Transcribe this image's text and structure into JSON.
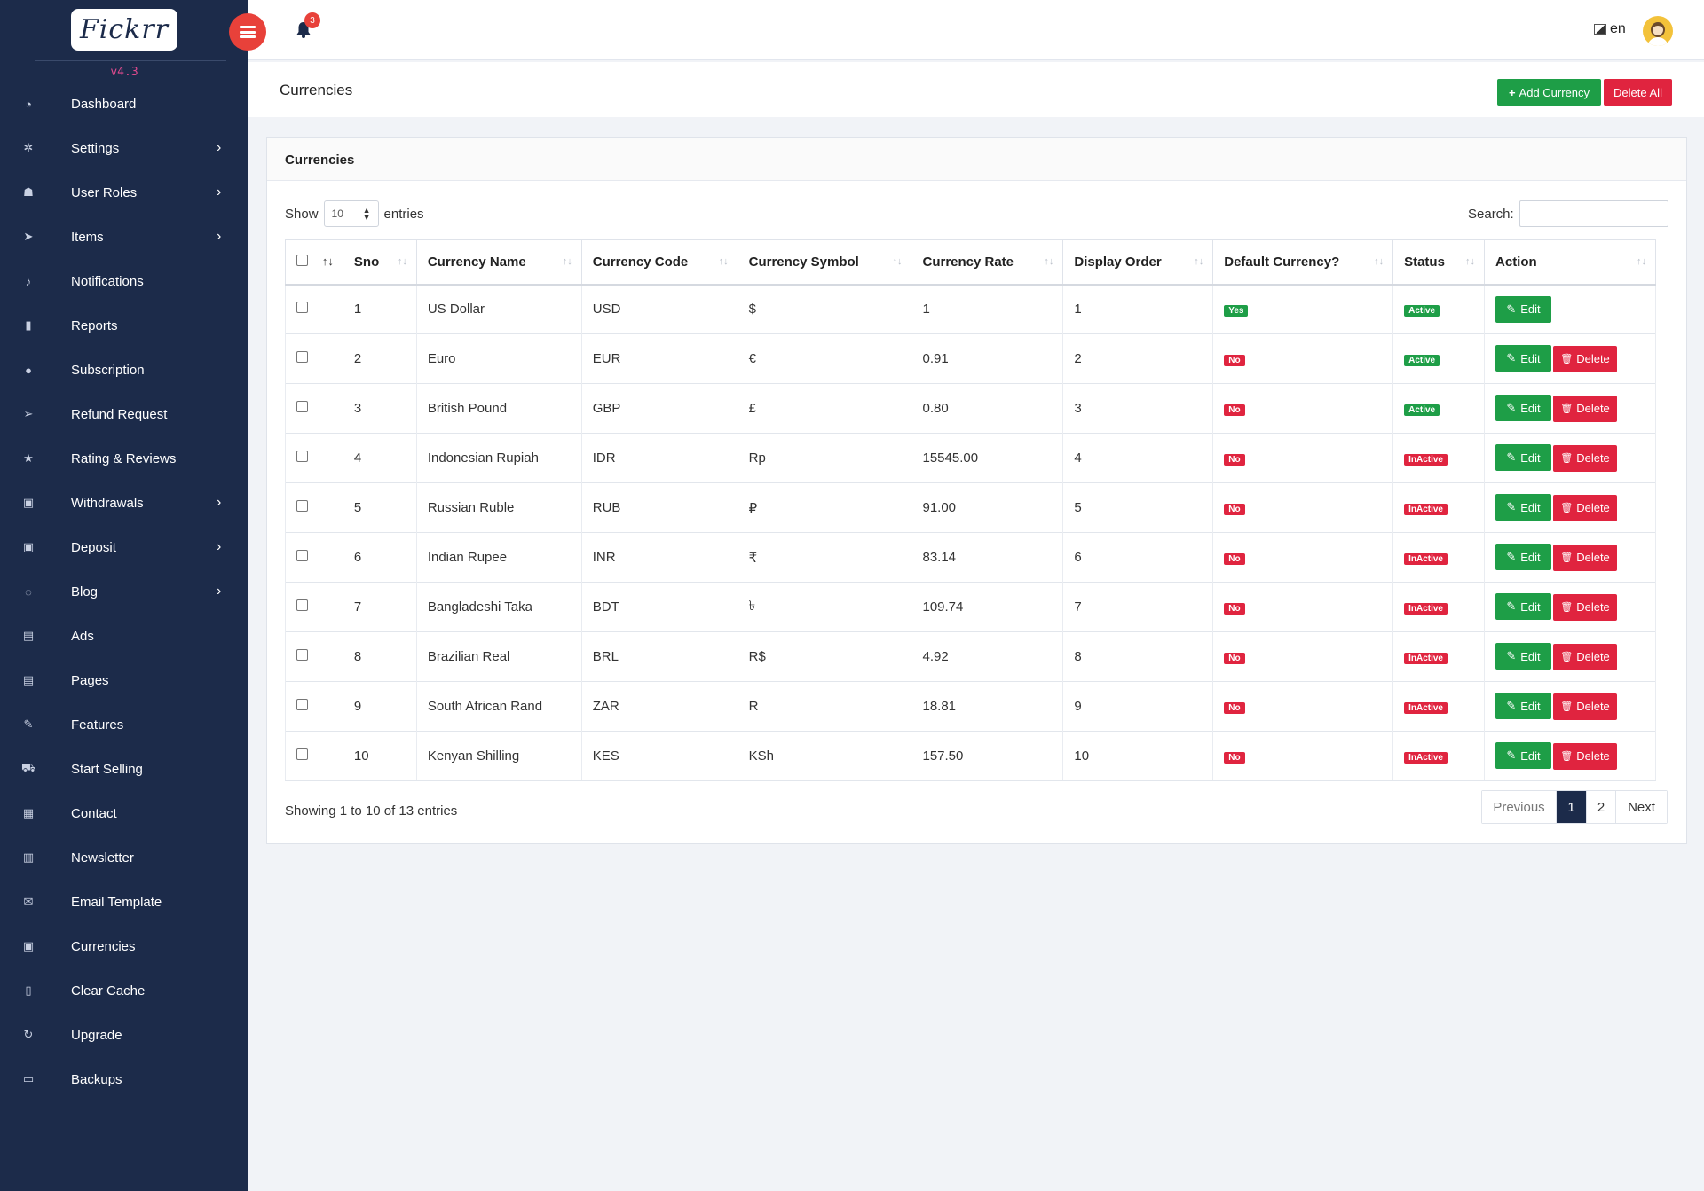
{
  "app": {
    "logo": "Fickrr",
    "version": "v4.3"
  },
  "sidebar": {
    "items": [
      {
        "label": "Dashboard",
        "icon": "dashboard-icon",
        "sub": false
      },
      {
        "label": "Settings",
        "icon": "cogs-icon",
        "sub": true
      },
      {
        "label": "User Roles",
        "icon": "users-icon",
        "sub": true
      },
      {
        "label": "Items",
        "icon": "location-arrow-icon",
        "sub": true
      },
      {
        "label": "Notifications",
        "icon": "bell-icon",
        "sub": false
      },
      {
        "label": "Reports",
        "icon": "file-icon",
        "sub": false
      },
      {
        "label": "Subscription",
        "icon": "user-icon",
        "sub": false
      },
      {
        "label": "Refund Request",
        "icon": "send-icon",
        "sub": false
      },
      {
        "label": "Rating & Reviews",
        "icon": "star-icon",
        "sub": false
      },
      {
        "label": "Withdrawals",
        "icon": "money-icon",
        "sub": true
      },
      {
        "label": "Deposit",
        "icon": "money-icon",
        "sub": true
      },
      {
        "label": "Blog",
        "icon": "comments-icon",
        "sub": true
      },
      {
        "label": "Ads",
        "icon": "file-image-icon",
        "sub": false
      },
      {
        "label": "Pages",
        "icon": "file-text-icon",
        "sub": false
      },
      {
        "label": "Features",
        "icon": "magic-icon",
        "sub": false
      },
      {
        "label": "Start Selling",
        "icon": "cart-icon",
        "sub": false
      },
      {
        "label": "Contact",
        "icon": "address-book-icon",
        "sub": false
      },
      {
        "label": "Newsletter",
        "icon": "newspaper-icon",
        "sub": false
      },
      {
        "label": "Email Template",
        "icon": "envelope-icon",
        "sub": false
      },
      {
        "label": "Currencies",
        "icon": "money-icon",
        "sub": false
      },
      {
        "label": "Clear Cache",
        "icon": "trash-icon",
        "sub": false
      },
      {
        "label": "Upgrade",
        "icon": "refresh-icon",
        "sub": false
      },
      {
        "label": "Backups",
        "icon": "hdd-icon",
        "sub": false
      }
    ]
  },
  "topbar": {
    "notification_count": "3",
    "language": "en"
  },
  "page": {
    "title": "Currencies",
    "add_label": "Add Currency",
    "delete_all_label": "Delete All"
  },
  "card": {
    "title": "Currencies",
    "show_label": "Show",
    "entries_label": "entries",
    "page_length": "10",
    "search_label": "Search:",
    "search_value": "",
    "columns": [
      "Sno",
      "Currency Name",
      "Currency Code",
      "Currency Symbol",
      "Currency Rate",
      "Display Order",
      "Default Currency?",
      "Status",
      "Action"
    ],
    "edit_label": "Edit",
    "delete_label": "Delete",
    "rows": [
      {
        "sno": "1",
        "name": "US Dollar",
        "code": "USD",
        "symbol": "$",
        "rate": "1",
        "order": "1",
        "default": "Yes",
        "status": "Active",
        "deletable": false
      },
      {
        "sno": "2",
        "name": "Euro",
        "code": "EUR",
        "symbol": "€",
        "rate": "0.91",
        "order": "2",
        "default": "No",
        "status": "Active",
        "deletable": true
      },
      {
        "sno": "3",
        "name": "British Pound",
        "code": "GBP",
        "symbol": "£",
        "rate": "0.80",
        "order": "3",
        "default": "No",
        "status": "Active",
        "deletable": true
      },
      {
        "sno": "4",
        "name": "Indonesian Rupiah",
        "code": "IDR",
        "symbol": "Rp",
        "rate": "15545.00",
        "order": "4",
        "default": "No",
        "status": "InActive",
        "deletable": true
      },
      {
        "sno": "5",
        "name": "Russian Ruble",
        "code": "RUB",
        "symbol": "₽",
        "rate": "91.00",
        "order": "5",
        "default": "No",
        "status": "InActive",
        "deletable": true
      },
      {
        "sno": "6",
        "name": "Indian Rupee",
        "code": "INR",
        "symbol": "₹",
        "rate": "83.14",
        "order": "6",
        "default": "No",
        "status": "InActive",
        "deletable": true
      },
      {
        "sno": "7",
        "name": "Bangladeshi Taka",
        "code": "BDT",
        "symbol": "৳",
        "rate": "109.74",
        "order": "7",
        "default": "No",
        "status": "InActive",
        "deletable": true
      },
      {
        "sno": "8",
        "name": "Brazilian Real",
        "code": "BRL",
        "symbol": "R$",
        "rate": "4.92",
        "order": "8",
        "default": "No",
        "status": "InActive",
        "deletable": true
      },
      {
        "sno": "9",
        "name": "South African Rand",
        "code": "ZAR",
        "symbol": "R",
        "rate": "18.81",
        "order": "9",
        "default": "No",
        "status": "InActive",
        "deletable": true
      },
      {
        "sno": "10",
        "name": "Kenyan Shilling",
        "code": "KES",
        "symbol": "KSh",
        "rate": "157.50",
        "order": "10",
        "default": "No",
        "status": "InActive",
        "deletable": true
      }
    ],
    "info": "Showing 1 to 10 of 13 entries",
    "pagination": {
      "previous": "Previous",
      "pages": [
        "1",
        "2"
      ],
      "current": "1",
      "next": "Next"
    }
  },
  "colors": {
    "sidebar": "#1c2b4a",
    "success": "#1e9e47",
    "danger": "#e0243f",
    "toggle": "#e8413a"
  }
}
